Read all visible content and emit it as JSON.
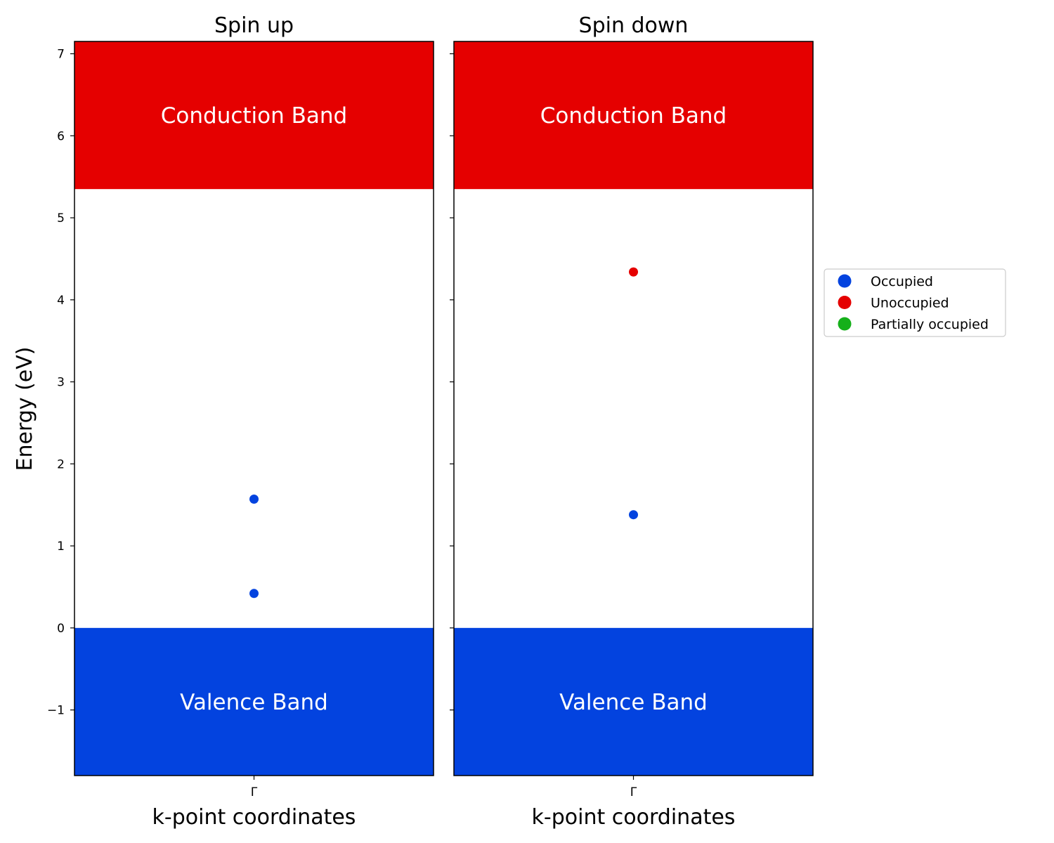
{
  "chart_data": {
    "type": "scatter",
    "ylabel": "Energy (eV)",
    "ylim": [
      -1.8,
      7.15
    ],
    "yticks": [
      -1,
      0,
      1,
      2,
      3,
      4,
      5,
      6,
      7
    ],
    "ytick_labels": [
      "−1",
      "0",
      "1",
      "2",
      "3",
      "4",
      "5",
      "6",
      "7"
    ],
    "legend": {
      "placement": "right",
      "entries": [
        {
          "label": "Occupied",
          "color": "#0343df"
        },
        {
          "label": "Unoccupied",
          "color": "#e50000"
        },
        {
          "label": "Partially occupied",
          "color": "#15b01a"
        }
      ]
    },
    "bands": {
      "valence": {
        "label": "Valence Band",
        "color": "#0343df",
        "from": -1.8,
        "to": 0
      },
      "conduction": {
        "label": "Conduction Band",
        "color": "#e50000",
        "from": 5.35,
        "to": 7.15
      }
    },
    "panels": [
      {
        "title": "Spin up",
        "xlabel": "k-point coordinates",
        "xtick": "Γ",
        "points": [
          {
            "y": 1.57,
            "state": "Occupied"
          },
          {
            "y": 0.42,
            "state": "Occupied"
          }
        ]
      },
      {
        "title": "Spin down",
        "xlabel": "k-point coordinates",
        "xtick": "Γ",
        "points": [
          {
            "y": 4.34,
            "state": "Unoccupied"
          },
          {
            "y": 1.38,
            "state": "Occupied"
          }
        ]
      }
    ]
  }
}
